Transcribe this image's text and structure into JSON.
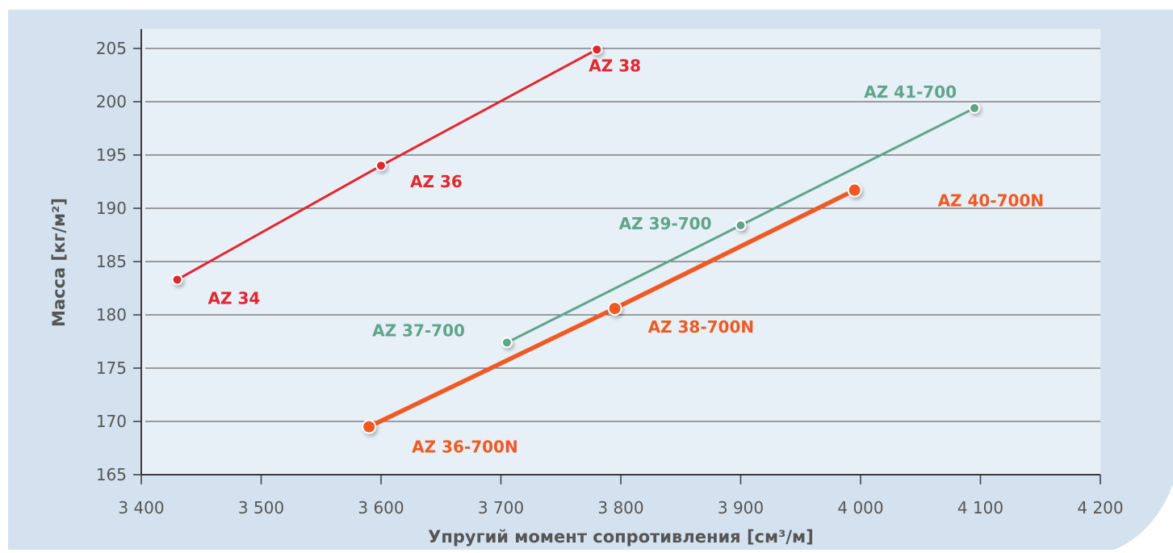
{
  "chart_data": {
    "type": "line",
    "xlabel": "Упругий момент сопротивления [см³/м]",
    "ylabel": "Масса [кг/м²]",
    "xlim": [
      3400,
      4200
    ],
    "ylim": [
      165,
      207
    ],
    "x_ticks": [
      3400,
      3500,
      3600,
      3700,
      3800,
      3900,
      4000,
      4100,
      4200
    ],
    "x_tick_labels": [
      "3 400",
      "3 500",
      "3 600",
      "3 700",
      "3 800",
      "3 900",
      "4 000",
      "4 100",
      "4 200"
    ],
    "y_ticks": [
      165,
      170,
      175,
      180,
      185,
      190,
      195,
      200,
      205
    ],
    "y_tick_labels": [
      "165",
      "170",
      "175",
      "180",
      "185",
      "190",
      "195",
      "200",
      "205"
    ],
    "grid": "horizontal",
    "legend": "none",
    "series": [
      {
        "color": "#e3262f",
        "points": [
          {
            "label": "AZ 34",
            "x": 3430,
            "y": 183.3
          },
          {
            "label": "AZ 36",
            "x": 3600,
            "y": 194.0
          },
          {
            "label": "AZ 38",
            "x": 3780,
            "y": 204.9
          }
        ]
      },
      {
        "color": "#5fa58a",
        "points": [
          {
            "label": "AZ 37-700",
            "x": 3705,
            "y": 177.4
          },
          {
            "label": "AZ 39-700",
            "x": 3900,
            "y": 188.4
          },
          {
            "label": "AZ 41-700",
            "x": 4095,
            "y": 199.4
          }
        ]
      },
      {
        "color": "#ef5a24",
        "points": [
          {
            "label": "AZ 36-700N",
            "x": 3590,
            "y": 169.5
          },
          {
            "label": "AZ 38-700N",
            "x": 3795,
            "y": 180.6
          },
          {
            "label": "AZ 40-700N",
            "x": 3995,
            "y": 191.7
          }
        ]
      }
    ]
  }
}
